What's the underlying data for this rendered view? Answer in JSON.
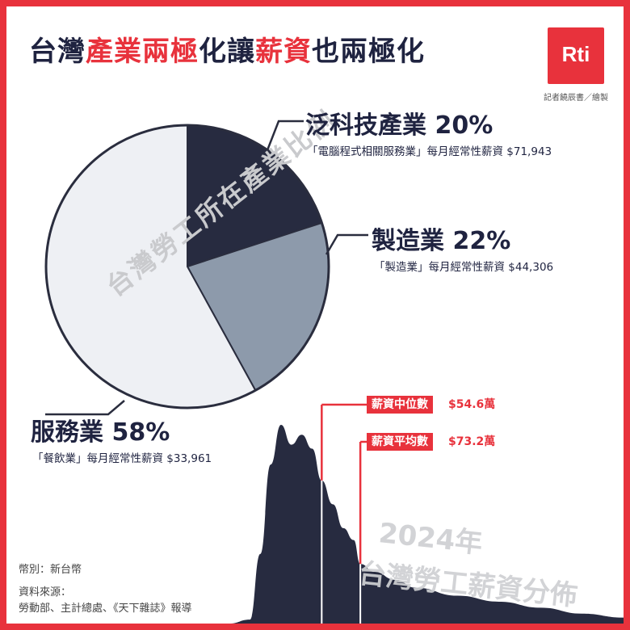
{
  "title": {
    "part1": "台灣",
    "part2": "產業兩極",
    "part3": "化讓",
    "part4": "薪資",
    "part5": "也兩極化"
  },
  "logo": {
    "text": "Rti",
    "credit": "記者饒辰書／繪製"
  },
  "pie_watermark": "台灣勞工所在產業比例",
  "dist_watermark": {
    "line1": "2024年",
    "line2": "台灣勞工薪資分佈"
  },
  "colors": {
    "tech": "#272b40",
    "manufacturing": "#8d9aab",
    "service": "#eef0f4",
    "accent": "#e8323c",
    "outline": "#2a2d3e"
  },
  "chart_data": [
    {
      "type": "pie",
      "title": "",
      "slices": [
        {
          "name": "泛科技產業",
          "percent": 20,
          "label": "泛科技產業 20%",
          "detail": "「電腦程式相關服務業」每月經常性薪資 $71,943"
        },
        {
          "name": "製造業",
          "percent": 22,
          "label": "製造業 22%",
          "detail": "「製造業」每月經常性薪資 $44,306"
        },
        {
          "name": "服務業",
          "percent": 58,
          "label": "服務業 58%",
          "detail": "「餐飲業」每月經常性薪資 $33,961"
        }
      ]
    },
    {
      "type": "area",
      "title": "",
      "xlabel": "",
      "ylabel": "",
      "x": [
        0,
        10,
        20,
        25,
        30,
        35,
        40,
        45,
        50,
        54.6,
        60,
        65,
        70,
        73.2,
        80,
        90,
        100,
        120,
        140,
        160,
        180,
        200
      ],
      "y": [
        0,
        0,
        2,
        35,
        80,
        100,
        90,
        95,
        88,
        72,
        60,
        48,
        42,
        30,
        26,
        22,
        18,
        14,
        11,
        8,
        5,
        3
      ],
      "markers": [
        {
          "label": "薪資中位數",
          "value": 54.6,
          "value_label": "$54.6萬"
        },
        {
          "label": "薪資平均數",
          "value": 73.2,
          "value_label": "$73.2萬"
        }
      ]
    }
  ],
  "notes": {
    "currency": "幣別：新台幣",
    "source_label": "資料來源：",
    "source": "勞動部、主計總處、《天下雜誌》報導"
  }
}
